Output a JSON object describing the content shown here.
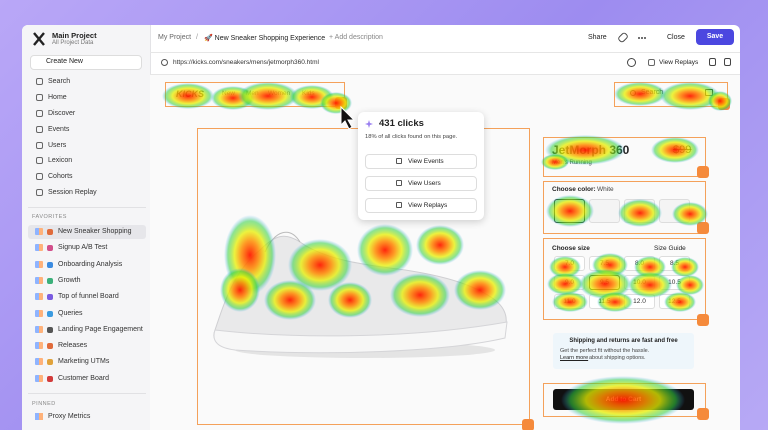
{
  "sidebar": {
    "project": "Main Project",
    "subtitle": "All Project Data",
    "create": "Create New",
    "nav": [
      "Search",
      "Home",
      "Discover",
      "Events",
      "Users",
      "Lexicon",
      "Cohorts",
      "Session Replay"
    ],
    "favorites_heading": "FAVORITES",
    "favorites": [
      "New Sneaker Shopping",
      "Signup A/B Test",
      "Onboarding Analysis",
      "Growth",
      "Top of funnel Board",
      "Queries",
      "Landing Page Engagement",
      "Releases",
      "Marketing UTMs",
      "Customer Board"
    ],
    "pinned_heading": "PINNED",
    "pinned": [
      "Proxy Metrics"
    ]
  },
  "topbar": {
    "breadcrumb": "My Project",
    "separator": "/",
    "page": "🚀 New Sneaker Shopping Experience",
    "description": "+ Add description",
    "share": "Share",
    "close": "Close",
    "save": "Save"
  },
  "urlbar": {
    "url": "https://kicks.com/sneakers/mens/jetmorph360.html",
    "view_replays": "View Replays"
  },
  "site": {
    "logo": "KICKS",
    "nav": [
      "New",
      "Men",
      "Women",
      "Kids"
    ],
    "search": "Search",
    "product": "JetMorph 360",
    "price": "$99",
    "category": "Men's Running",
    "color_label": "Choose color:",
    "color_value": "White",
    "size_label": "Choose size",
    "size_guide": "Size Guide",
    "sizes": [
      "7.0",
      "7.5",
      "8.0",
      "8.5",
      "9.0",
      "9.5",
      "10.0",
      "10.5",
      "11.0",
      "11.5",
      "12.0",
      "12.5"
    ],
    "shipping_title": "Shipping and returns are fast and free",
    "shipping_text": "Get the perfect fit without the hassle.",
    "shipping_link": "Learn more",
    "shipping_rest": "about shipping options.",
    "add_to_cart": "Add to Cart"
  },
  "popup": {
    "title": "431 clicks",
    "subtitle": "18% of all clicks found on this page.",
    "buttons": [
      "View Events",
      "View Users",
      "View Replays"
    ]
  }
}
